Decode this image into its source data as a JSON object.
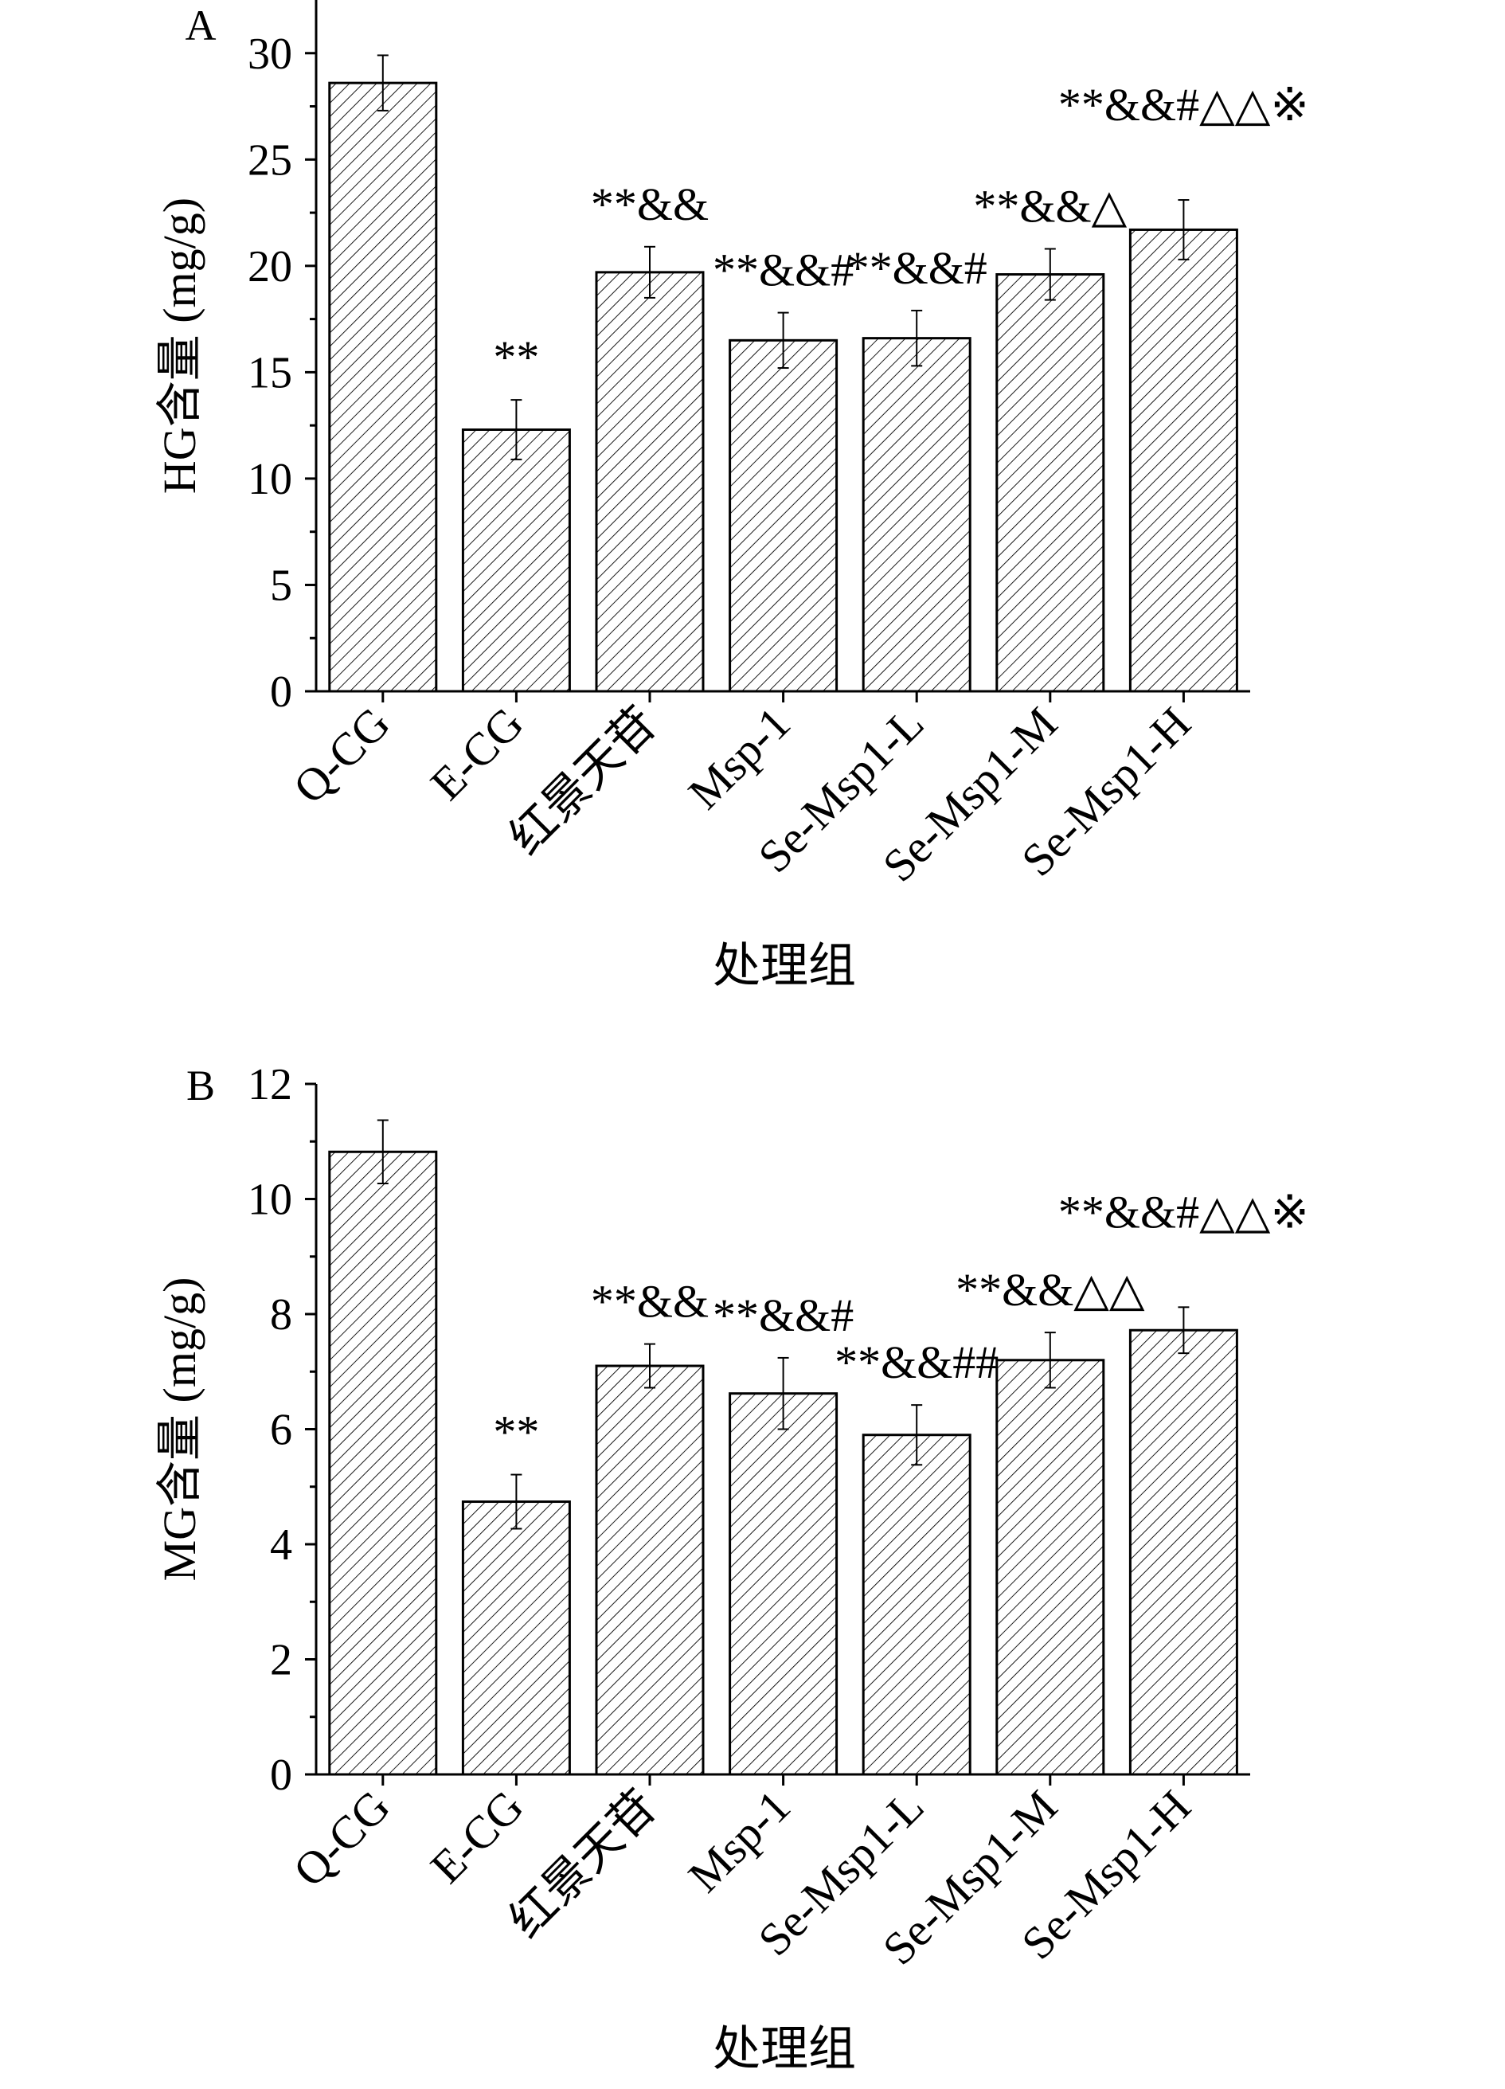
{
  "chart_data": [
    {
      "panel_label": "A",
      "type": "bar",
      "categories": [
        "Q-CG",
        "E-CG",
        "红景天苷",
        "Msp-1",
        "Se-Msp1-L",
        "Se-Msp1-M",
        "Se-Msp1-H"
      ],
      "values": [
        28.6,
        12.3,
        19.7,
        16.5,
        16.6,
        19.6,
        21.7
      ],
      "errors": [
        1.3,
        1.4,
        1.2,
        1.3,
        1.3,
        1.2,
        1.4
      ],
      "annotations": [
        "",
        "**",
        "**&&",
        "**&&#",
        "**&&#",
        "**&&△",
        "**&&#△△※"
      ],
      "xlabel": "处理组",
      "ylabel": "HG含量 (mg/g)",
      "ylim": [
        0,
        32.5
      ],
      "yticks": [
        0,
        5,
        10,
        15,
        20,
        25,
        30
      ],
      "legend": "none",
      "grid": false
    },
    {
      "panel_label": "B",
      "type": "bar",
      "categories": [
        "Q-CG",
        "E-CG",
        "红景天苷",
        "Msp-1",
        "Se-Msp1-L",
        "Se-Msp1-M",
        "Se-Msp1-H"
      ],
      "values": [
        10.82,
        4.74,
        7.1,
        6.62,
        5.9,
        7.2,
        7.72
      ],
      "errors": [
        0.55,
        0.47,
        0.38,
        0.62,
        0.52,
        0.48,
        0.4
      ],
      "annotations": [
        "",
        "**",
        "**&&",
        "**&&#",
        "**&&##",
        "**&&△△",
        "**&&#△△※"
      ],
      "xlabel": "处理组",
      "ylabel": "MG含量 (mg/g)",
      "ylim": [
        0,
        12
      ],
      "yticks": [
        0,
        2,
        4,
        6,
        8,
        10,
        12
      ],
      "legend": "none",
      "grid": false
    }
  ]
}
